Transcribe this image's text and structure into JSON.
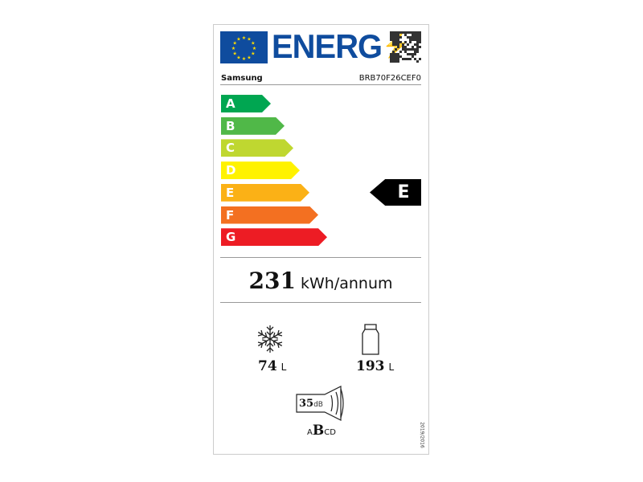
{
  "header": {
    "logo_text": "ENERG",
    "supplier": "Samsung",
    "model": "BRB70F26CEF0"
  },
  "scale": {
    "classes": [
      {
        "letter": "A",
        "color": "#00a651"
      },
      {
        "letter": "B",
        "color": "#50b848"
      },
      {
        "letter": "C",
        "color": "#bfd730"
      },
      {
        "letter": "D",
        "color": "#fff200"
      },
      {
        "letter": "E",
        "color": "#fbb116"
      },
      {
        "letter": "F",
        "color": "#f37021"
      },
      {
        "letter": "G",
        "color": "#ed1c24"
      }
    ],
    "rating": "E"
  },
  "energy": {
    "value": "231",
    "unit": "kWh/annum"
  },
  "freezer": {
    "icon": "snowflake-icon",
    "value": "74",
    "unit": "L"
  },
  "fridge": {
    "icon": "bottle-icon",
    "value": "193",
    "unit": "L"
  },
  "noise": {
    "value": "35",
    "unit": "dB",
    "classes": [
      "A",
      "B",
      "C",
      "D"
    ],
    "class": "B"
  },
  "regulation": "2019/2016"
}
